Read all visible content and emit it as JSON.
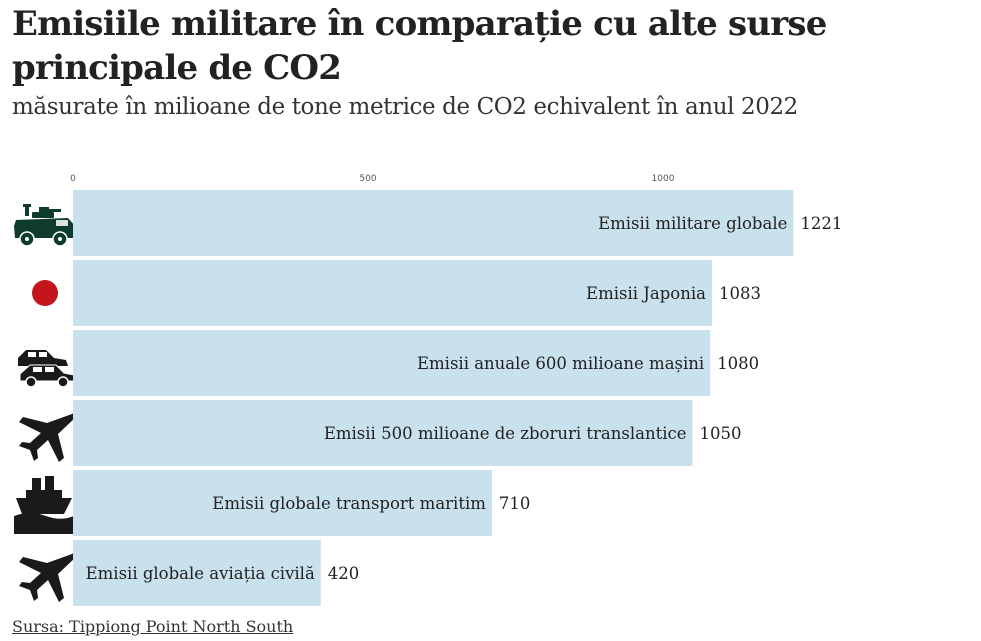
{
  "header": {
    "title": "Emisiile militare în comparație cu alte surse principale de CO2",
    "subtitle": "măsurate în milioane de tone metrice de CO2 echivalent în anul 2022"
  },
  "source": "Sursa: Tippiong Point North South",
  "colors": {
    "bar": "#c9e1ec",
    "text": "#222222",
    "icon": "#1a1a1a",
    "vehicle": "#0f3b2f",
    "japan_red": "#c4151c"
  },
  "chart_data": {
    "type": "bar",
    "orientation": "horizontal",
    "title": "Emisiile militare în comparație cu alte surse principale de CO2",
    "subtitle": "măsurate în milioane de tone metrice de CO2 echivalent în anul 2022",
    "xlabel": "",
    "ylabel": "",
    "xlim": [
      0,
      1250
    ],
    "ticks": [
      0,
      500,
      1000
    ],
    "categories": [
      "Emisii militare globale",
      "Emisii Japonia",
      "Emisii anuale 600 milioane mașini",
      "Emisii 500 milioane de zboruri translantice",
      "Emisii globale transport maritim",
      "Emisii globale aviația civilă"
    ],
    "values": [
      1221,
      1083,
      1080,
      1050,
      710,
      420
    ],
    "icons": [
      "military-vehicle-icon",
      "japan-flag-icon",
      "cars-icon",
      "airplane-icon",
      "ship-icon",
      "airplane-icon"
    ]
  }
}
